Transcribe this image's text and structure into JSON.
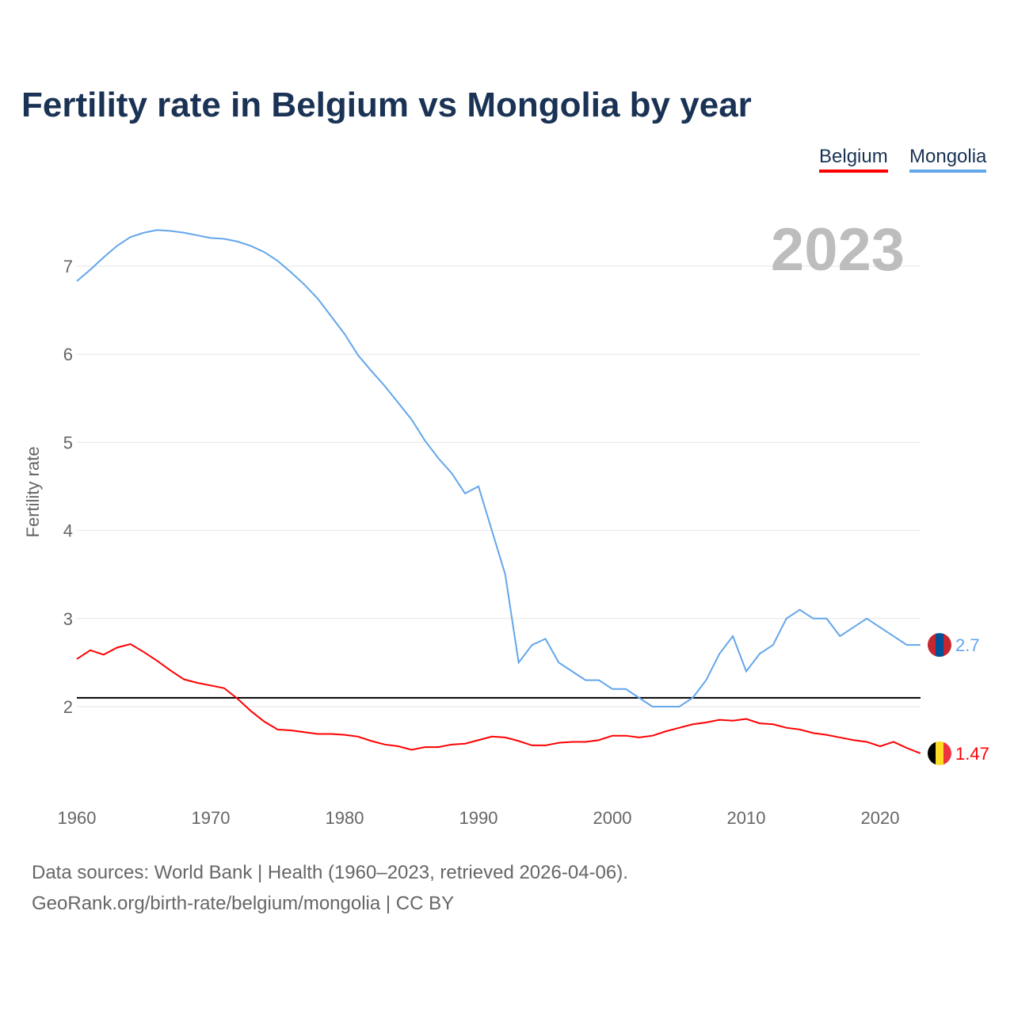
{
  "title": "Fertility rate in Belgium vs Mongolia by year",
  "legend": {
    "belgium": "Belgium",
    "mongolia": "Mongolia"
  },
  "year_label": "2023",
  "footer": {
    "line1": "Data sources: World Bank | Health (1960–2023, retrieved 2026-04-06).",
    "line2": "GeoRank.org/birth-rate/belgium/mongolia | CC BY"
  },
  "colors": {
    "belgium": "#ff0000",
    "mongolia": "#63a6ea",
    "reference": "#000000"
  },
  "chart_data": {
    "type": "line",
    "title": "Fertility rate in Belgium vs Mongolia by year",
    "xlabel": "",
    "ylabel": "Fertility rate",
    "xlim": [
      1960,
      2023
    ],
    "ylim": [
      1.1,
      7.6
    ],
    "xticks": [
      1960,
      1970,
      1980,
      1990,
      2000,
      2010,
      2020
    ],
    "yticks": [
      2,
      3,
      4,
      5,
      6,
      7
    ],
    "reference_line": 2.1,
    "grid": true,
    "legend_position": "top-right",
    "x": [
      1960,
      1961,
      1962,
      1963,
      1964,
      1965,
      1966,
      1967,
      1968,
      1969,
      1970,
      1971,
      1972,
      1973,
      1974,
      1975,
      1976,
      1977,
      1978,
      1979,
      1980,
      1981,
      1982,
      1983,
      1984,
      1985,
      1986,
      1987,
      1988,
      1989,
      1990,
      1991,
      1992,
      1993,
      1994,
      1995,
      1996,
      1997,
      1998,
      1999,
      2000,
      2001,
      2002,
      2003,
      2004,
      2005,
      2006,
      2007,
      2008,
      2009,
      2010,
      2011,
      2012,
      2013,
      2014,
      2015,
      2016,
      2017,
      2018,
      2019,
      2020,
      2021,
      2022,
      2023
    ],
    "series": [
      {
        "name": "Belgium",
        "end_label": "1.47",
        "values": [
          2.54,
          2.64,
          2.59,
          2.67,
          2.71,
          2.62,
          2.52,
          2.41,
          2.31,
          2.27,
          2.24,
          2.21,
          2.09,
          1.95,
          1.83,
          1.74,
          1.73,
          1.71,
          1.69,
          1.69,
          1.68,
          1.66,
          1.61,
          1.57,
          1.55,
          1.51,
          1.54,
          1.54,
          1.57,
          1.58,
          1.62,
          1.66,
          1.65,
          1.61,
          1.56,
          1.56,
          1.59,
          1.6,
          1.6,
          1.62,
          1.67,
          1.67,
          1.65,
          1.67,
          1.72,
          1.76,
          1.8,
          1.82,
          1.85,
          1.84,
          1.86,
          1.81,
          1.8,
          1.76,
          1.74,
          1.7,
          1.68,
          1.65,
          1.62,
          1.6,
          1.55,
          1.6,
          1.53,
          1.47
        ]
      },
      {
        "name": "Mongolia",
        "end_label": "2.7",
        "values": [
          6.83,
          6.96,
          7.1,
          7.23,
          7.33,
          7.38,
          7.41,
          7.4,
          7.38,
          7.35,
          7.32,
          7.31,
          7.28,
          7.23,
          7.16,
          7.06,
          6.93,
          6.79,
          6.63,
          6.43,
          6.23,
          5.99,
          5.81,
          5.64,
          5.45,
          5.26,
          5.02,
          4.82,
          4.65,
          4.42,
          4.5,
          4.0,
          3.5,
          2.5,
          2.7,
          2.77,
          2.5,
          2.4,
          2.3,
          2.3,
          2.2,
          2.2,
          2.1,
          2.0,
          2.0,
          2.0,
          2.1,
          2.3,
          2.6,
          2.8,
          2.4,
          2.6,
          2.7,
          3.0,
          3.1,
          3.0,
          3.0,
          2.8,
          2.9,
          3.0,
          2.9,
          2.8,
          2.7,
          2.7
        ]
      }
    ]
  }
}
